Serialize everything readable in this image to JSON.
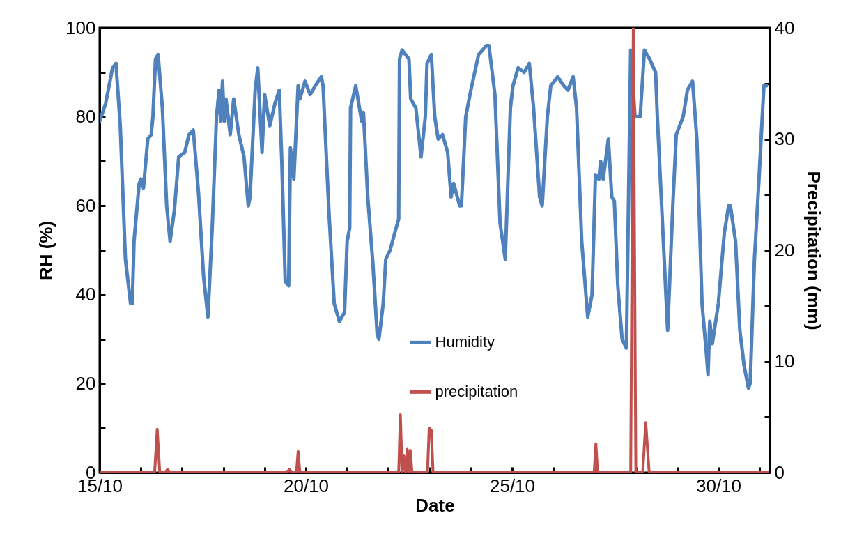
{
  "chart_data": {
    "type": "line",
    "xlabel": "Date",
    "ylabel": "RH (%)",
    "y2label": "Precipitation (mm)",
    "xlim": [
      "--10-15T00:00",
      "--10-31T06:00"
    ],
    "xticks": [
      {
        "value": "--10-15",
        "label": "15/10"
      },
      {
        "value": "--10-16",
        "label": null
      },
      {
        "value": "--10-17",
        "label": null
      },
      {
        "value": "--10-18",
        "label": null
      },
      {
        "value": "--10-19",
        "label": null
      },
      {
        "value": "--10-20",
        "label": "20/10"
      },
      {
        "value": "--10-21",
        "label": null
      },
      {
        "value": "--10-22",
        "label": null
      },
      {
        "value": "--10-23",
        "label": null
      },
      {
        "value": "--10-24",
        "label": null
      },
      {
        "value": "--10-25",
        "label": "25/10"
      },
      {
        "value": "--10-26",
        "label": null
      },
      {
        "value": "--10-27",
        "label": null
      },
      {
        "value": "--10-28",
        "label": null
      },
      {
        "value": "--10-29",
        "label": null
      },
      {
        "value": "--10-30",
        "label": "30/10"
      },
      {
        "value": "--10-31",
        "label": null
      }
    ],
    "ylim": [
      0,
      100
    ],
    "yticks": [
      0,
      {
        "value": 10,
        "label": null
      },
      20,
      {
        "value": 30,
        "label": null
      },
      40,
      {
        "value": 50,
        "label": null
      },
      60,
      {
        "value": 70,
        "label": null
      },
      80,
      {
        "value": 90,
        "label": null
      },
      100
    ],
    "y2lim": [
      0,
      40
    ],
    "y2ticks": [
      0,
      {
        "value": 5,
        "label": null
      },
      10,
      {
        "value": 15,
        "label": null
      },
      20,
      {
        "value": 25,
        "label": null
      },
      30,
      {
        "value": 35,
        "label": null
      },
      40
    ],
    "legend": "bottom",
    "grid": false,
    "series": [
      {
        "name": "Humidity",
        "color": "#4f81bd",
        "x": [
          "--10-15T00:00",
          "--10-15T03:30",
          "--10-15T07:30",
          "--10-15T09:30",
          "--10-15T12:00",
          "--10-15T15:00",
          "--10-15T18:00",
          "--10-15T19:00",
          "--10-15T20:00",
          "--10-15T23:00",
          "--10-16T00:00",
          "--10-16T01:30",
          "--10-16T04:00",
          "--10-16T06:00",
          "--10-16T07:00",
          "--10-16T08:30",
          "--10-16T10:00",
          "--10-16T12:30",
          "--10-16T15:00",
          "--10-16T17:00",
          "--10-16T19:30",
          "--10-16T22:00",
          "--10-17T01:30",
          "--10-17T04:00",
          "--10-17T06:30",
          "--10-17T09:30",
          "--10-17T12:30",
          "--10-17T15:00",
          "--10-17T17:30",
          "--10-17T20:00",
          "--10-17T21:30",
          "--10-17T22:30",
          "--10-17T23:30",
          "--10-18T00:30",
          "--10-18T01:30",
          "--10-18T04:00",
          "--10-18T06:00",
          "--10-18T09:00",
          "--10-18T12:00",
          "--10-18T14:30",
          "--10-18T15:30",
          "--10-18T18:30",
          "--10-18T20:00",
          "--10-18T22:30",
          "--10-19T00:00",
          "--10-19T03:00",
          "--10-19T06:00",
          "--10-19T08:30",
          "--10-19T10:00",
          "--10-19T12:00",
          "--10-19T14:00",
          "--10-19T15:00",
          "--10-19T17:00",
          "--10-19T19:30",
          "--10-19T20:30",
          "--10-19T23:30",
          "--10-20T02:30",
          "--10-20T05:30",
          "--10-20T09:00",
          "--10-20T10:00",
          "--10-20T13:30",
          "--10-20T16:30",
          "--10-20T19:30",
          "--10-20T22:30",
          "--10-21T00:00",
          "--10-21T01:30",
          "--10-21T02:00",
          "--10-21T05:00",
          "--10-21T08:30",
          "--10-21T09:30",
          "--10-21T12:00",
          "--10-21T15:00",
          "--10-21T17:30",
          "--10-21T18:30",
          "--10-21T21:00",
          "--10-21T22:30",
          "--10-22T01:00",
          "--10-22T04:30",
          "--10-22T06:00",
          "--10-22T06:30",
          "--10-22T08:00",
          "--10-22T12:00",
          "--10-22T13:00",
          "--10-22T16:00",
          "--10-22T19:00",
          "--10-22T21:30",
          "--10-22T22:30",
          "--10-23T01:00",
          "--10-23T03:00",
          "--10-23T05:00",
          "--10-23T07:30",
          "--10-23T10:30",
          "--10-23T12:30",
          "--10-23T14:00",
          "--10-23T17:30",
          "--10-23T18:30",
          "--10-23T21:00",
          "--10-24T00:00",
          "--10-24T04:30",
          "--10-24T09:00",
          "--10-24T10:30",
          "--10-24T14:00",
          "--10-24T17:00",
          "--10-24T20:00",
          "--10-24T23:00",
          "--10-25T00:30",
          "--10-25T03:30",
          "--10-25T07:00",
          "--10-25T10:00",
          "--10-25T12:30",
          "--10-25T16:00",
          "--10-25T17:30",
          "--10-25T20:30",
          "--10-25T22:30",
          "--10-26T02:30",
          "--10-26T06:00",
          "--10-26T08:30",
          "--10-26T11:30",
          "--10-26T13:30",
          "--10-26T16:30",
          "--10-26T20:00",
          "--10-26T22:30",
          "--10-27T00:30",
          "--10-27T02:30",
          "--10-27T03:30",
          "--10-27T05:00",
          "--10-27T08:00",
          "--10-27T10:00",
          "--10-27T11:30",
          "--10-27T13:30",
          "--10-27T16:00",
          "--10-27T18:30",
          "--10-27T21:00",
          "--10-27T23:30",
          "--10-28T02:30",
          "--10-28T05:00",
          "--10-28T08:00",
          "--10-28T11:30",
          "--10-28T12:30",
          "--10-28T15:00",
          "--10-28T17:30",
          "--10-28T18:30",
          "--10-28T21:30",
          "--10-28T23:30",
          "--10-29T03:30",
          "--10-29T06:00",
          "--10-29T09:00",
          "--10-29T11:30",
          "--10-29T14:30",
          "--10-29T17:00",
          "--10-29T18:00",
          "--10-29T19:00",
          "--10-29T20:30",
          "--10-30T00:00",
          "--10-30T03:30",
          "--10-30T06:00",
          "--10-30T07:00",
          "--10-30T10:00",
          "--10-30T12:30",
          "--10-30T15:00",
          "--10-30T17:30",
          "--10-30T18:30",
          "--10-30T21:00",
          "--10-30T23:30",
          "--10-31T02:30",
          "--10-31T04:00"
        ],
        "values": [
          79,
          83,
          91,
          92,
          78,
          48,
          38,
          38,
          52,
          65,
          66,
          64,
          75,
          76,
          80,
          93,
          94,
          82,
          60,
          52,
          59,
          71,
          72,
          76,
          77,
          63,
          44,
          35,
          55,
          80,
          86,
          79,
          88,
          79,
          84,
          76,
          84,
          76,
          71,
          60,
          62,
          86,
          91,
          72,
          85,
          78,
          83,
          86,
          70,
          43,
          42,
          73,
          66,
          87,
          84,
          88,
          85,
          87,
          89,
          87,
          58,
          38,
          34,
          36,
          52,
          55,
          82,
          87,
          79,
          81,
          62,
          47,
          31,
          30,
          38,
          48,
          50,
          55,
          57,
          93,
          95,
          93,
          84,
          82,
          71,
          80,
          92,
          94,
          80,
          75,
          76,
          72,
          62,
          65,
          60,
          60,
          80,
          86,
          94,
          96,
          96,
          85,
          56,
          48,
          82,
          87,
          91,
          90,
          92,
          82,
          62,
          60,
          80,
          87,
          89,
          87,
          86,
          89,
          82,
          52,
          35,
          40,
          67,
          66,
          70,
          66,
          75,
          62,
          61,
          42,
          30,
          28,
          95,
          80,
          80,
          95,
          93,
          90,
          80,
          60,
          40,
          32,
          60,
          76,
          80,
          86,
          88,
          75,
          38,
          27,
          22,
          34,
          29,
          38,
          54,
          60,
          60,
          52,
          32,
          24,
          19,
          20,
          48,
          65,
          87,
          87
        ]
      },
      {
        "name": "precipitation",
        "color": "#c0504d",
        "axis": "y2",
        "x": [
          "--10-15T00:00",
          "--10-16T08:00",
          "--10-16T09:30",
          "--10-16T11:00",
          "--10-16T14:30",
          "--10-16T15:30",
          "--10-16T16:30",
          "--10-19T13:00",
          "--10-19T14:30",
          "--10-19T15:30",
          "--10-19T18:30",
          "--10-19T19:30",
          "--10-19T20:30",
          "--10-22T06:00",
          "--10-22T07:00",
          "--10-22T08:00",
          "--10-22T09:00",
          "--10-22T10:00",
          "--10-22T11:00",
          "--10-22T11:45",
          "--10-22T12:45",
          "--10-22T13:45",
          "--10-22T22:45",
          "--10-22T23:45",
          "--10-23T01:00",
          "--10-23T02:00",
          "--10-26T23:45",
          "--10-27T00:45",
          "--10-27T01:45",
          "--10-27T21:00",
          "--10-27T22:30",
          "--10-28T00:00",
          "--10-28T04:00",
          "--10-28T05:45",
          "--10-28T07:45",
          "--10-31T04:45"
        ],
        "values": [
          0,
          0,
          3.9,
          0,
          0,
          0.3,
          0,
          0,
          0.3,
          0,
          0,
          1.9,
          0,
          0,
          5.2,
          0,
          1.5,
          0,
          2.1,
          0,
          2,
          0,
          0,
          4,
          3.8,
          0,
          0,
          2.6,
          0,
          0,
          40,
          0,
          0,
          4.5,
          0,
          0
        ]
      }
    ]
  }
}
